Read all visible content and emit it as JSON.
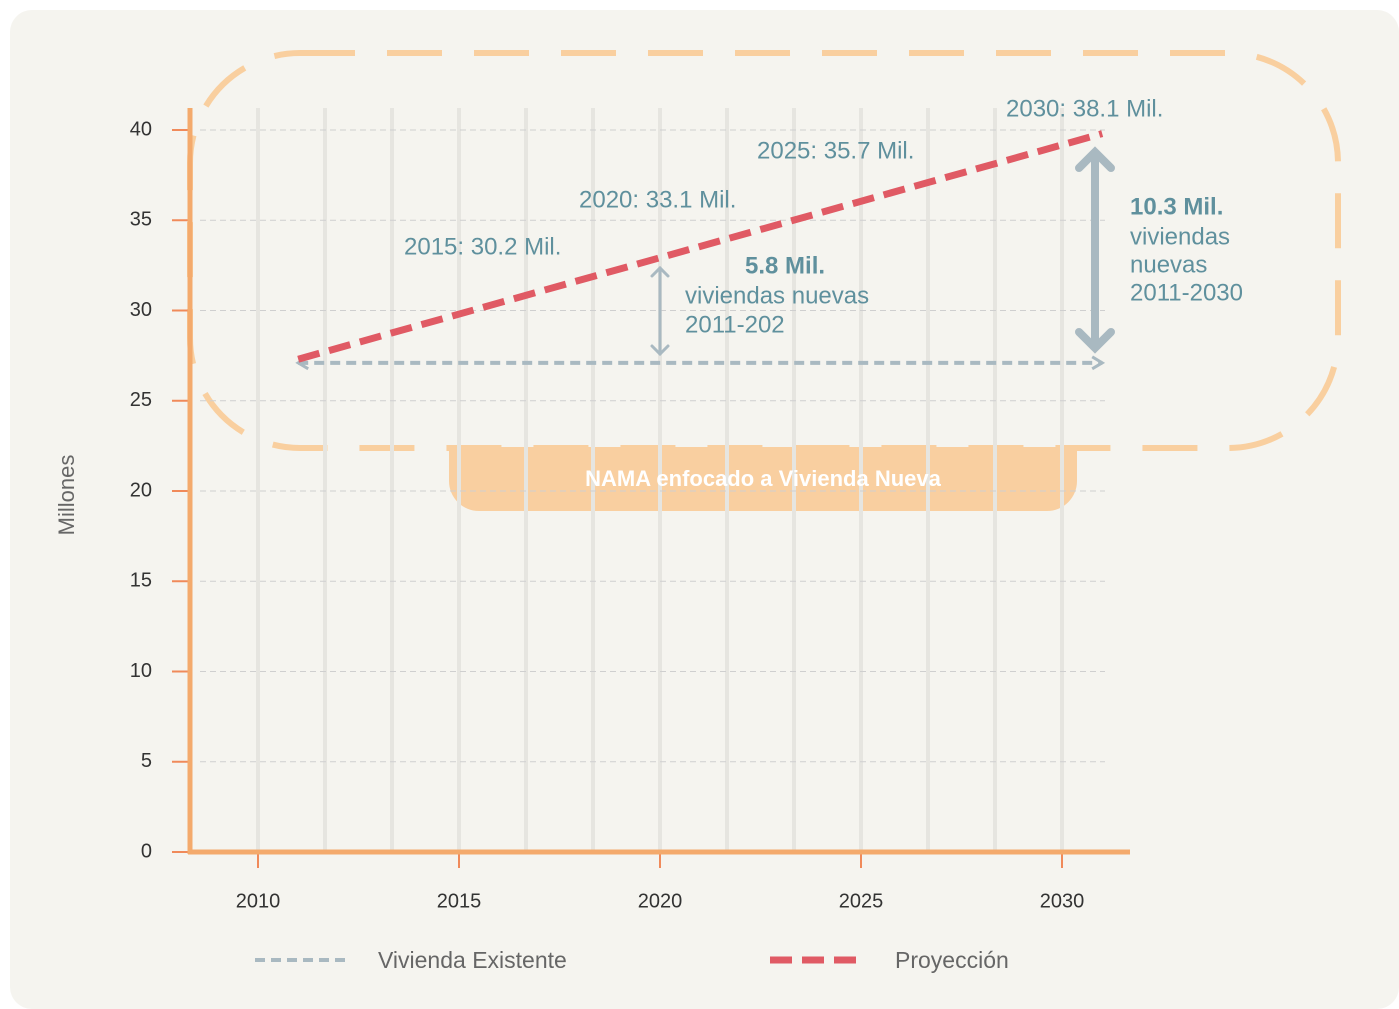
{
  "chart_data": {
    "type": "line",
    "y_label": "Millones",
    "x": [
      2011,
      2031
    ],
    "series": [
      {
        "name": "Vivienda Existente",
        "color": "#a9b9c1",
        "values": [
          27.1,
          27.1
        ]
      },
      {
        "name": "Proyección",
        "color": "#e05a64",
        "values": [
          27.3,
          39.8
        ]
      }
    ],
    "xlim": [
      2008,
      2033.5
    ],
    "xticks": [
      2010,
      2015,
      2020,
      2025,
      2030
    ],
    "ylim": [
      0,
      40
    ],
    "yticks": [
      0,
      5,
      10,
      15,
      20,
      25,
      30,
      35,
      40
    ],
    "grid": true,
    "annotations": [
      "2015: 30.2 Mil.",
      "2020: 33.1 Mil.",
      "2025: 35.7 Mil.",
      "2030: 38.1 Mil.",
      "5.8 Mil.",
      "viviendas nuevas",
      "2011-202",
      "10.3 Mil.",
      "viviendas",
      "nuevas",
      "2011-2030",
      "NAMA enfocado a Vivienda Nueva"
    ]
  }
}
